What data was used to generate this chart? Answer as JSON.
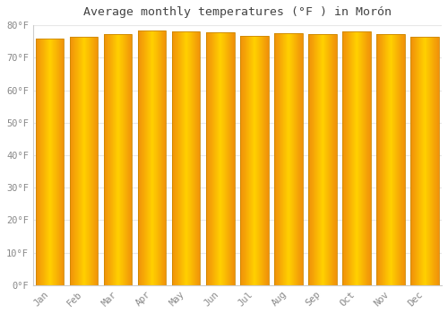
{
  "title": "Average monthly temperatures (°F ) in Morón",
  "months": [
    "Jan",
    "Feb",
    "Mar",
    "Apr",
    "May",
    "Jun",
    "Jul",
    "Aug",
    "Sep",
    "Oct",
    "Nov",
    "Dec"
  ],
  "values": [
    75.9,
    76.3,
    77.2,
    78.3,
    78.1,
    77.9,
    76.6,
    77.4,
    77.2,
    78.1,
    77.2,
    76.3
  ],
  "bar_color_center": "#FFD000",
  "bar_color_edge": "#F0900A",
  "background_color": "#FFFFFF",
  "grid_color": "#E8E8E8",
  "tick_label_color": "#888888",
  "title_color": "#444444",
  "ylim": [
    0,
    80
  ],
  "yticks": [
    0,
    10,
    20,
    30,
    40,
    50,
    60,
    70,
    80
  ],
  "ytick_labels": [
    "0°F",
    "10°F",
    "20°F",
    "30°F",
    "40°F",
    "50°F",
    "60°F",
    "70°F",
    "80°F"
  ]
}
